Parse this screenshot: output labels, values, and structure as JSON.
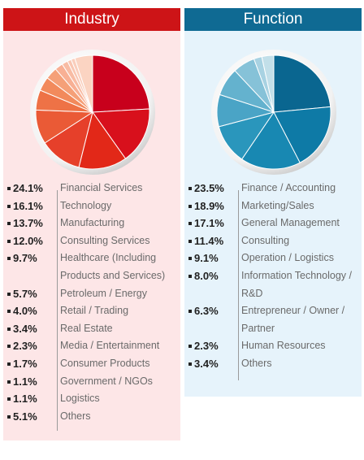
{
  "chart_data": [
    {
      "type": "pie",
      "title": "Industry",
      "categories": [
        "Financial Services",
        "Technology",
        "Manufacturing",
        "Consulting Services",
        "Healthcare (Including Products and Services)",
        "Petroleum / Energy",
        "Retail / Trading",
        "Real Estate",
        "Media / Entertainment",
        "Consumer Products",
        "Government / NGOs",
        "Logistics",
        "Others"
      ],
      "values": [
        24.1,
        16.1,
        13.7,
        12.0,
        9.7,
        5.7,
        4.0,
        3.4,
        2.3,
        1.7,
        1.1,
        1.1,
        5.1
      ],
      "labels": [
        "24.1%",
        "16.1%",
        "13.7%",
        "12.0%",
        "9.7%",
        "5.7%",
        "4.0%",
        "3.4%",
        "2.3%",
        "1.7%",
        "1.1%",
        "1.1%",
        "5.1%"
      ],
      "label_lines": [
        [
          "Financial Services"
        ],
        [
          "Technology"
        ],
        [
          "Manufacturing"
        ],
        [
          "Consulting Services"
        ],
        [
          "Healthcare (Including",
          "Products and Services)"
        ],
        [
          "Petroleum / Energy"
        ],
        [
          "Retail / Trading"
        ],
        [
          "Real Estate"
        ],
        [
          "Media / Entertainment"
        ],
        [
          "Consumer Products"
        ],
        [
          "Government / NGOs"
        ],
        [
          "Logistics"
        ],
        [
          "Others"
        ]
      ],
      "colors": [
        "#c8001c",
        "#d8101c",
        "#e22818",
        "#e6402a",
        "#ea5a36",
        "#ee7246",
        "#f28a5c",
        "#f5a078",
        "#f8b094",
        "#f8bca4",
        "#f9c6b2",
        "#facebc",
        "#fbd4c2"
      ],
      "legend_position": "bottom"
    },
    {
      "type": "pie",
      "title": "Function",
      "categories": [
        "Finance / Accounting",
        "Marketing/Sales",
        "General Management",
        "Consulting",
        "Operation / Logistics",
        "Information Technology / R&D",
        "Entrepreneur / Owner / Partner",
        "Human Resources",
        "Others"
      ],
      "values": [
        23.5,
        18.9,
        17.1,
        11.4,
        9.1,
        8.0,
        6.3,
        2.3,
        3.4
      ],
      "labels": [
        "23.5%",
        "18.9%",
        "17.1%",
        "11.4%",
        "9.1%",
        "8.0%",
        "6.3%",
        "2.3%",
        "3.4%"
      ],
      "label_lines": [
        [
          "Finance / Accounting"
        ],
        [
          "Marketing/Sales"
        ],
        [
          "General Management"
        ],
        [
          "Consulting"
        ],
        [
          "Operation / Logistics"
        ],
        [
          "Information Technology /",
          "R&D"
        ],
        [
          "Entrepreneur / Owner /",
          "Partner"
        ],
        [
          "Human Resources"
        ],
        [
          "Others"
        ]
      ],
      "colors": [
        "#0a6690",
        "#0e7aa6",
        "#1888b2",
        "#2a96bc",
        "#4aa4c6",
        "#64b2ce",
        "#86c2d8",
        "#a8d2e2",
        "#c2dfe9"
      ],
      "legend_position": "bottom"
    }
  ]
}
